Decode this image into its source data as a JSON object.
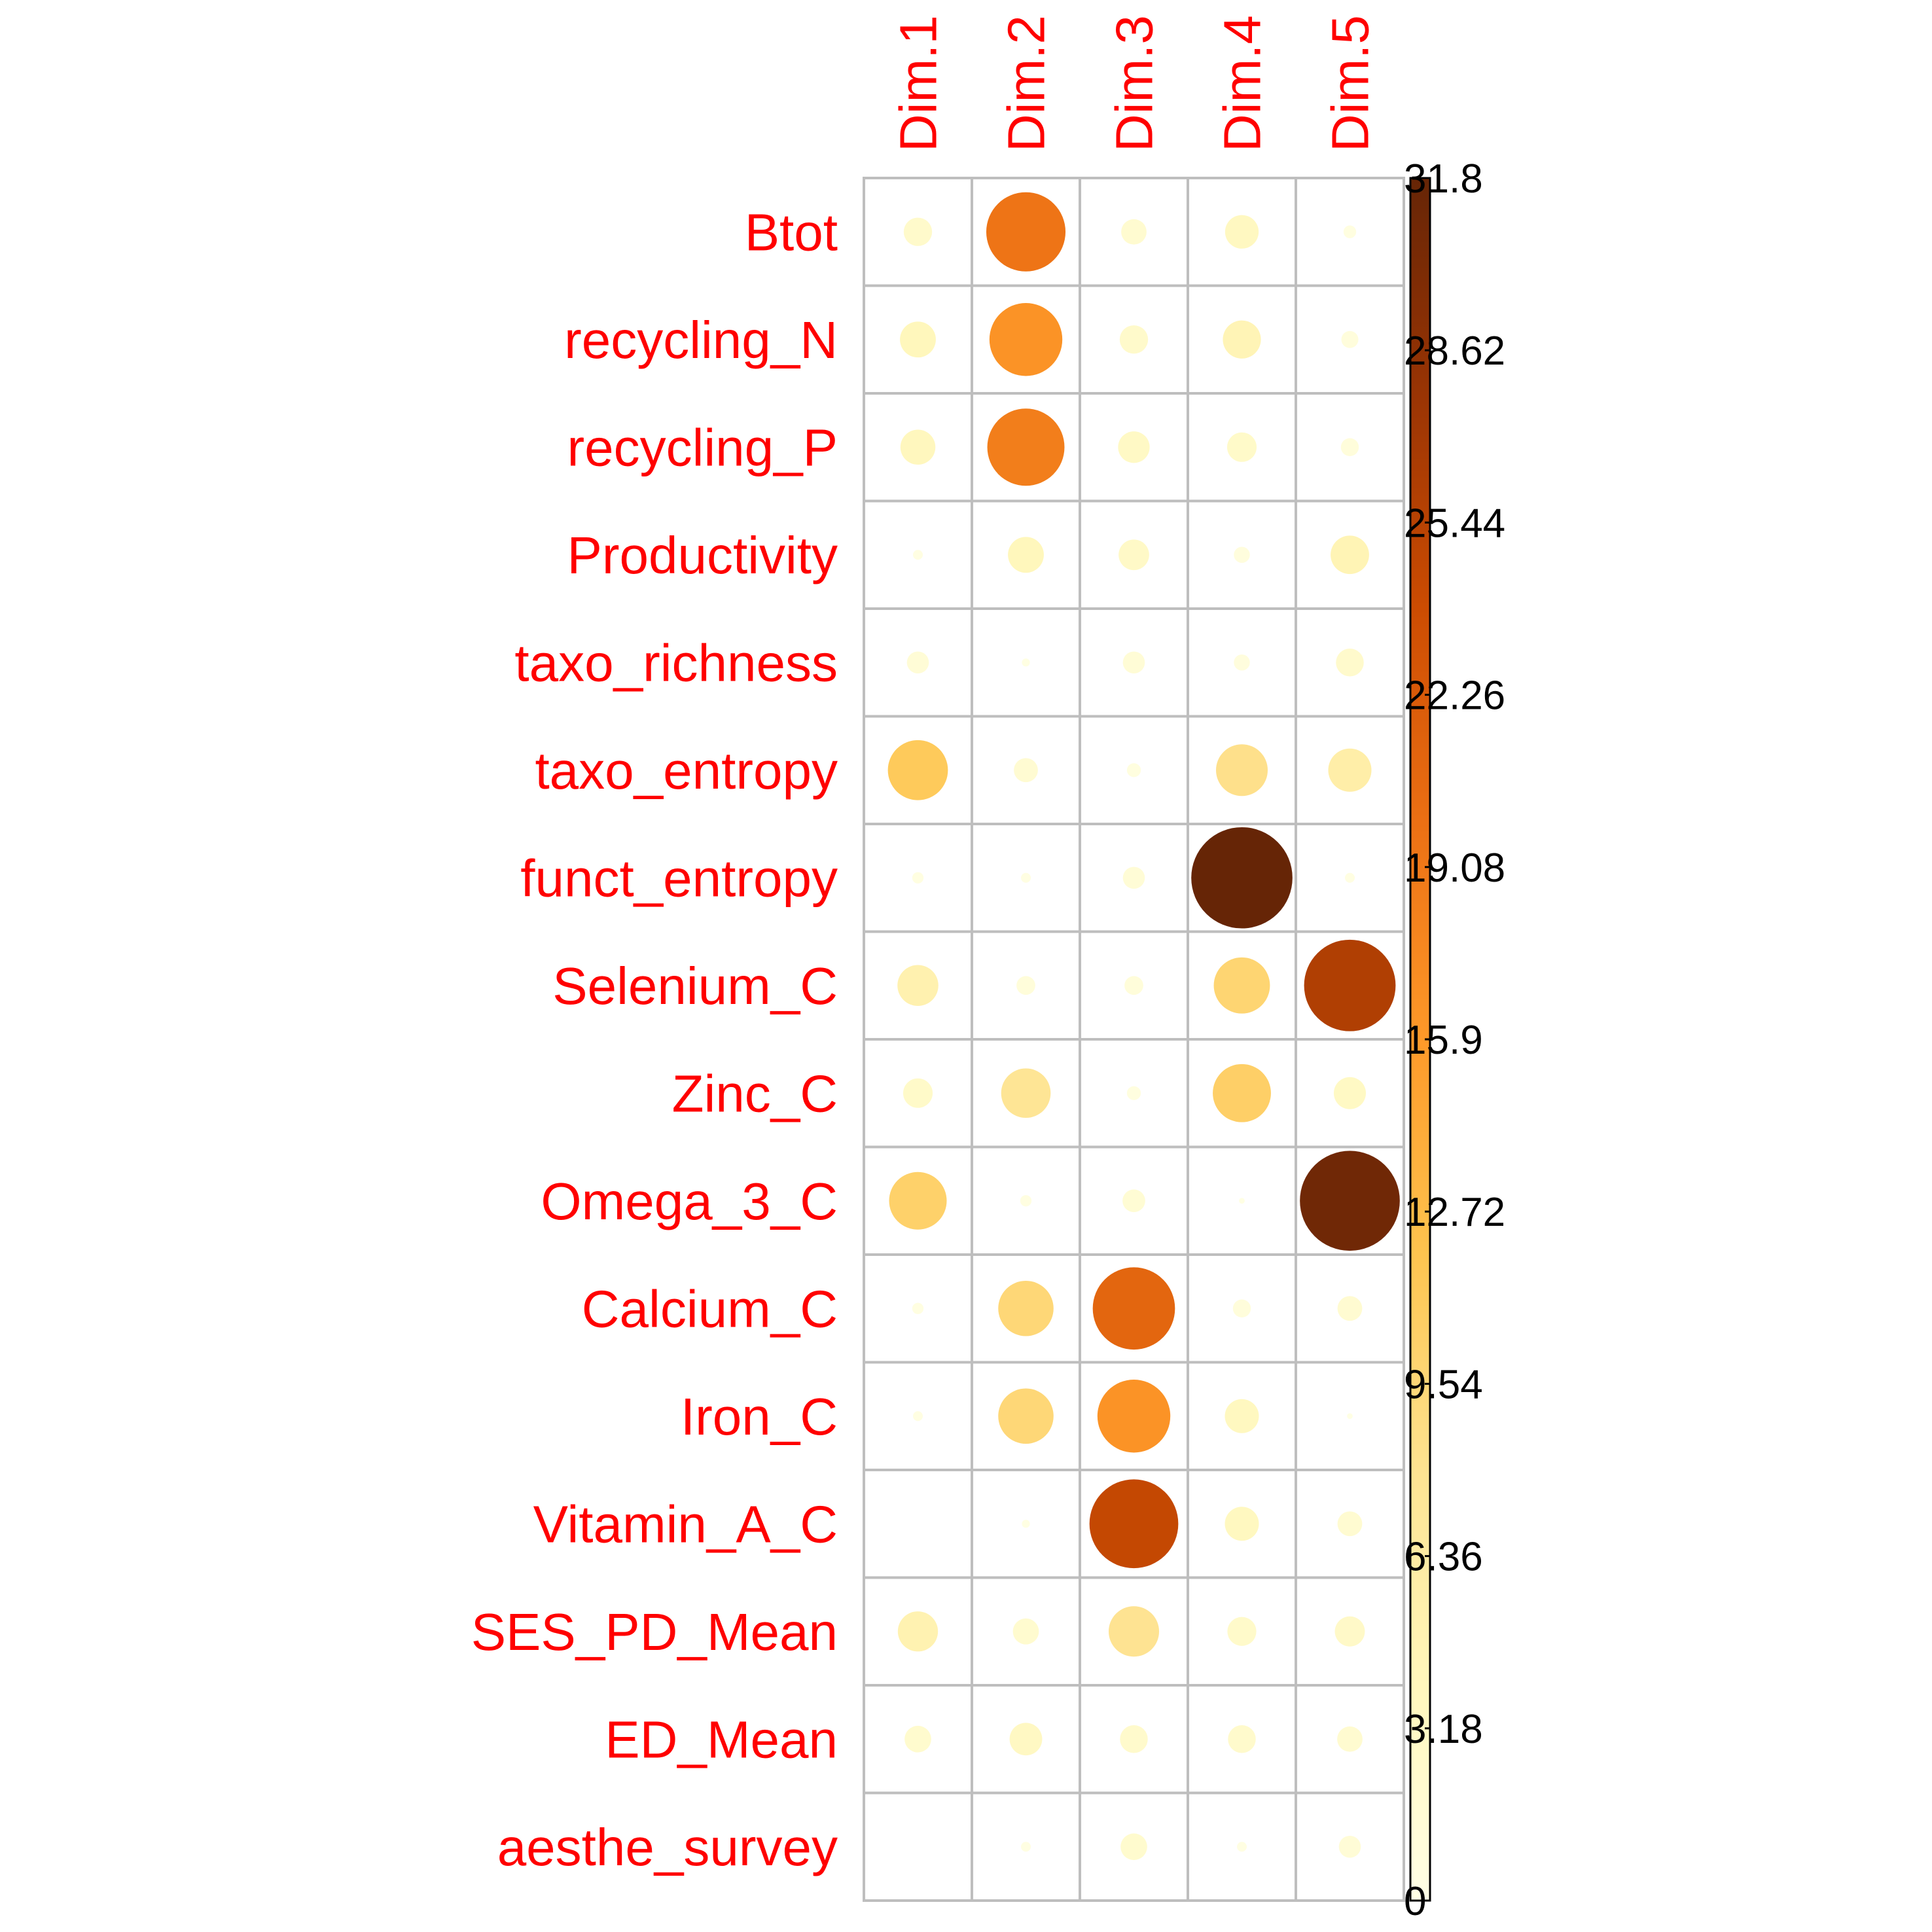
{
  "chart_data": {
    "type": "heatmap",
    "rows": [
      "Btot",
      "recycling_N",
      "recycling_P",
      "Productivity",
      "taxo_richness",
      "taxo_entropy",
      "funct_entropy",
      "Selenium_C",
      "Zinc_C",
      "Omega_3_C",
      "Calcium_C",
      "Iron_C",
      "Vitamin_A_C",
      "SES_PD_Mean",
      "ED_Mean",
      "aesthe_survey"
    ],
    "columns": [
      "Dim.1",
      "Dim.2",
      "Dim.3",
      "Dim.4",
      "Dim.5"
    ],
    "values": [
      [
        2.5,
        19.5,
        2.0,
        3.5,
        0.5
      ],
      [
        4.0,
        16.5,
        2.5,
        4.5,
        0.9
      ],
      [
        3.8,
        18.5,
        3.1,
        2.7,
        1.0
      ],
      [
        0.3,
        4.0,
        2.9,
        0.8,
        4.6
      ],
      [
        1.5,
        0.2,
        1.5,
        0.8,
        2.4
      ],
      [
        11.2,
        1.8,
        0.6,
        8.3,
        5.8
      ],
      [
        0.4,
        0.3,
        1.5,
        31.8,
        0.3
      ],
      [
        5.2,
        1.1,
        1.1,
        9.8,
        26.0
      ],
      [
        2.7,
        7.6,
        0.6,
        10.5,
        3.2
      ],
      [
        10.3,
        0.4,
        1.6,
        0.1,
        31.0
      ],
      [
        0.4,
        9.5,
        21.0,
        1.0,
        1.9
      ],
      [
        0.3,
        9.5,
        16.5,
        3.6,
        0.1
      ],
      [
        0.0,
        0.2,
        24.5,
        3.6,
        1.9
      ],
      [
        5.0,
        2.1,
        7.9,
        2.6,
        2.8
      ],
      [
        2.2,
        3.3,
        2.4,
        2.4,
        2.0
      ],
      [
        0.0,
        0.3,
        2.2,
        0.3,
        1.5
      ]
    ],
    "scale": {
      "min": 0,
      "max": 31.8,
      "ticks": [
        "0",
        "3.18",
        "6.36",
        "9.54",
        "12.72",
        "15.9",
        "19.08",
        "22.26",
        "25.44",
        "28.62",
        "31.8"
      ],
      "colors": [
        "#ffffe5",
        "#fff7bc",
        "#fee391",
        "#fec44f",
        "#fe9929",
        "#ec7014",
        "#cc4c02",
        "#993404",
        "#662506"
      ]
    },
    "label_color": "#ff0000",
    "grid_color": "#bebebe"
  }
}
